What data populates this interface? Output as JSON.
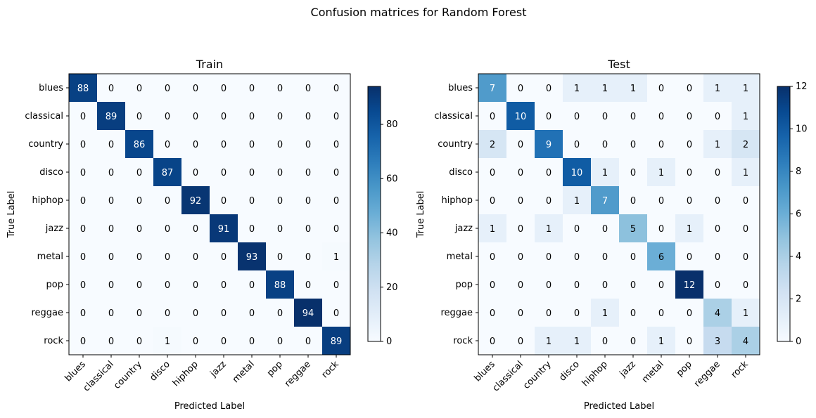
{
  "suptitle": "Confusion matrices for Random Forest",
  "chart_data": [
    {
      "type": "heatmap",
      "title": "Train",
      "xlabel": "Predicted Label",
      "ylabel": "True Label",
      "colormap": "Blues",
      "categories": [
        "blues",
        "classical",
        "country",
        "disco",
        "hiphop",
        "jazz",
        "metal",
        "pop",
        "reggae",
        "rock"
      ],
      "matrix": [
        [
          88,
          0,
          0,
          0,
          0,
          0,
          0,
          0,
          0,
          0
        ],
        [
          0,
          89,
          0,
          0,
          0,
          0,
          0,
          0,
          0,
          0
        ],
        [
          0,
          0,
          86,
          0,
          0,
          0,
          0,
          0,
          0,
          0
        ],
        [
          0,
          0,
          0,
          87,
          0,
          0,
          0,
          0,
          0,
          0
        ],
        [
          0,
          0,
          0,
          0,
          92,
          0,
          0,
          0,
          0,
          0
        ],
        [
          0,
          0,
          0,
          0,
          0,
          91,
          0,
          0,
          0,
          0
        ],
        [
          0,
          0,
          0,
          0,
          0,
          0,
          93,
          0,
          0,
          1
        ],
        [
          0,
          0,
          0,
          0,
          0,
          0,
          0,
          88,
          0,
          0
        ],
        [
          0,
          0,
          0,
          0,
          0,
          0,
          0,
          0,
          94,
          0
        ],
        [
          0,
          0,
          0,
          1,
          0,
          0,
          0,
          0,
          0,
          89
        ]
      ],
      "colorbar": {
        "range": [
          0,
          94
        ],
        "ticks": [
          0,
          20,
          40,
          60,
          80
        ]
      }
    },
    {
      "type": "heatmap",
      "title": "Test",
      "xlabel": "Predicted Label",
      "ylabel": "True Label",
      "colormap": "Blues",
      "categories": [
        "blues",
        "classical",
        "country",
        "disco",
        "hiphop",
        "jazz",
        "metal",
        "pop",
        "reggae",
        "rock"
      ],
      "matrix": [
        [
          7,
          0,
          0,
          1,
          1,
          1,
          0,
          0,
          1,
          1
        ],
        [
          0,
          10,
          0,
          0,
          0,
          0,
          0,
          0,
          0,
          1
        ],
        [
          2,
          0,
          9,
          0,
          0,
          0,
          0,
          0,
          1,
          2
        ],
        [
          0,
          0,
          0,
          10,
          1,
          0,
          1,
          0,
          0,
          1
        ],
        [
          0,
          0,
          0,
          1,
          7,
          0,
          0,
          0,
          0,
          0
        ],
        [
          1,
          0,
          1,
          0,
          0,
          5,
          0,
          1,
          0,
          0
        ],
        [
          0,
          0,
          0,
          0,
          0,
          0,
          6,
          0,
          0,
          0
        ],
        [
          0,
          0,
          0,
          0,
          0,
          0,
          0,
          12,
          0,
          0
        ],
        [
          0,
          0,
          0,
          0,
          1,
          0,
          0,
          0,
          4,
          1
        ],
        [
          0,
          0,
          1,
          1,
          0,
          0,
          1,
          0,
          3,
          4
        ]
      ],
      "colorbar": {
        "range": [
          0,
          12
        ],
        "ticks": [
          0,
          2,
          4,
          6,
          8,
          10,
          12
        ]
      }
    }
  ]
}
